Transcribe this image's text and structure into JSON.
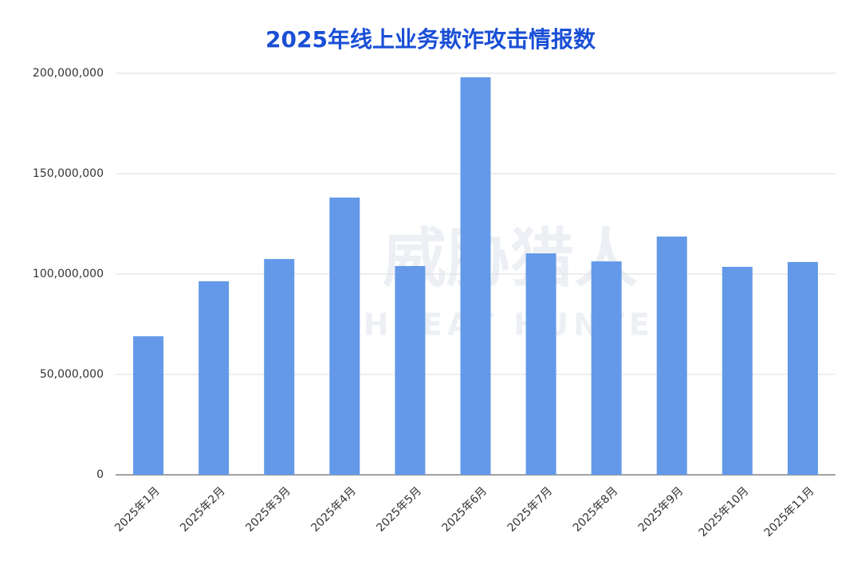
{
  "chart_data": {
    "type": "bar",
    "title": "2025年线上业务欺诈攻击情报数",
    "watermark": [
      "威胁猎人",
      "THREAT HUNTER"
    ],
    "categories": [
      "2025年1月",
      "2025年2月",
      "2025年3月",
      "2025年4月",
      "2025年5月",
      "2025年6月",
      "2025年7月",
      "2025年8月",
      "2025年9月",
      "2025年10月",
      "2025年11月"
    ],
    "values": [
      69000000,
      96400000,
      107500000,
      138100000,
      104000000,
      198000000,
      110300000,
      106300000,
      118700000,
      103600000,
      106000000
    ],
    "color": "#6399e8",
    "ylim": [
      0,
      200000000
    ],
    "yticks": [
      0,
      {
        "value": 50000000,
        "label": "50,000,000"
      },
      {
        "value": 100000000,
        "label": "100,000,000"
      },
      {
        "value": 150000000,
        "label": "150,000,000"
      },
      {
        "value": 200000000,
        "label": "200,000,000"
      }
    ],
    "grid": true
  }
}
